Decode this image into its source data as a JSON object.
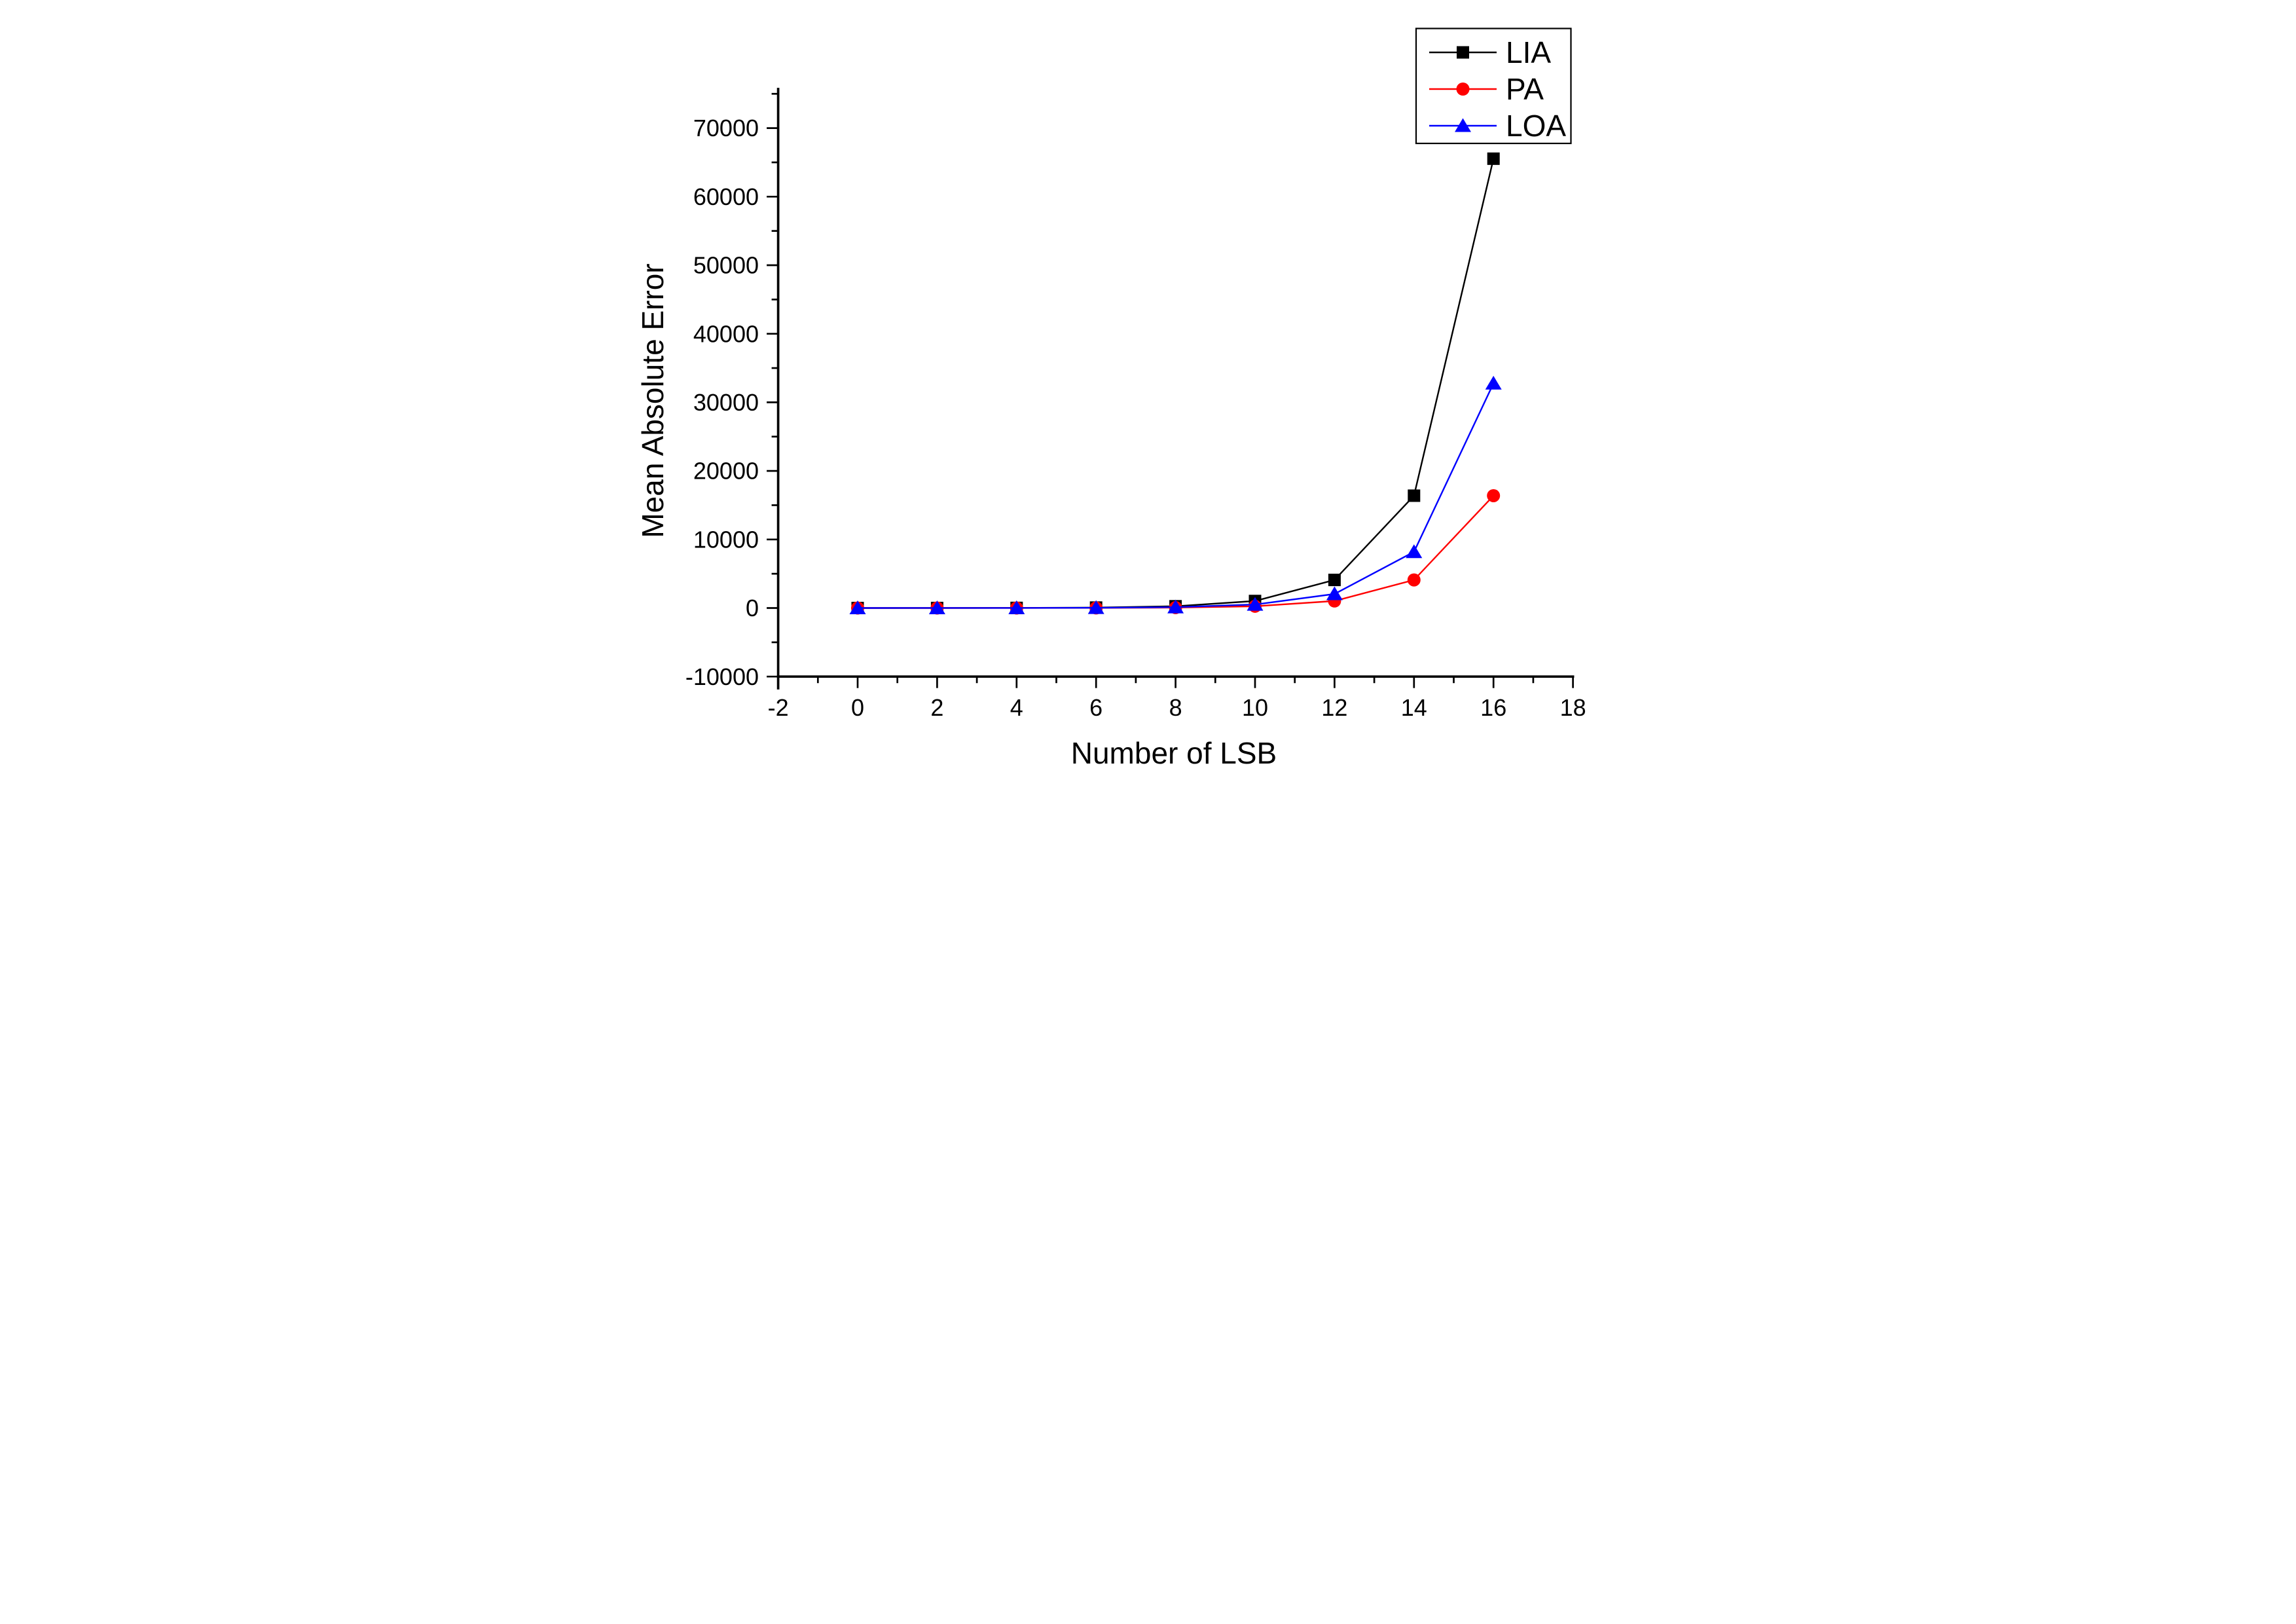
{
  "figure": {
    "background": "#ffffff"
  },
  "chart_data": {
    "type": "line",
    "title": "",
    "xlabel": "Number of LSB",
    "ylabel": "Mean Absolute Error",
    "x": [
      0,
      2,
      4,
      6,
      8,
      10,
      12,
      14,
      16
    ],
    "series": [
      {
        "name": "LIA",
        "color": "#000000",
        "marker": "square",
        "values": [
          1,
          4,
          16,
          64,
          256,
          1024,
          4096,
          16384,
          65536
        ]
      },
      {
        "name": "PA",
        "color": "#ff0000",
        "marker": "circle",
        "values": [
          0.25,
          1,
          4,
          16,
          64,
          256,
          1024,
          4096,
          16384
        ]
      },
      {
        "name": "LOA",
        "color": "#0000ff",
        "marker": "triangle",
        "values": [
          0.5,
          2,
          8,
          32,
          128,
          512,
          2048,
          8192,
          32768
        ]
      }
    ],
    "xlim": [
      -2,
      18
    ],
    "ylim": [
      -11700,
      75700
    ],
    "x_axis_position": -10000,
    "x_ticks_major": [
      -2,
      0,
      2,
      4,
      6,
      8,
      10,
      12,
      14,
      16,
      18
    ],
    "x_ticks_minor": [
      -1,
      1,
      3,
      5,
      7,
      9,
      11,
      13,
      15,
      17
    ],
    "y_ticks_major": [
      -10000,
      0,
      10000,
      20000,
      30000,
      40000,
      50000,
      60000,
      70000
    ],
    "y_ticks_minor": [
      -5000,
      5000,
      15000,
      25000,
      35000,
      45000,
      55000,
      65000,
      75000
    ],
    "grid": false,
    "legend_position": "top-right",
    "legend": [
      "LIA",
      "PA",
      "LOA"
    ],
    "axis_color": "#000000"
  }
}
